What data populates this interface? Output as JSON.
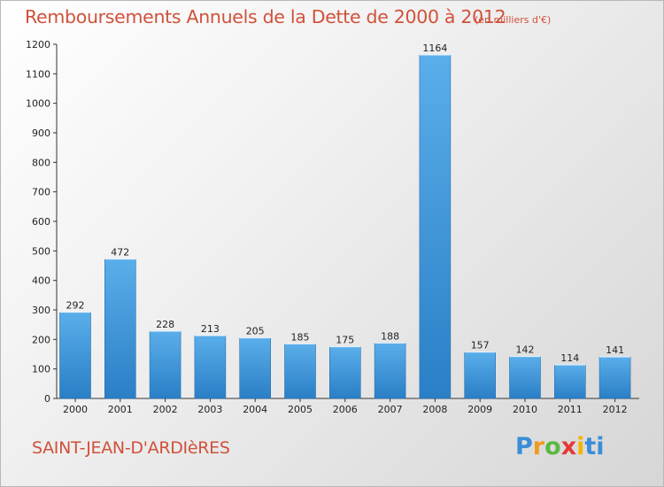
{
  "title": "Remboursements Annuels de la Dette de 2000 à 2012",
  "unit": "(en milliers d'€)",
  "place": "SAINT-JEAN-D'ARDIèRES",
  "logo": {
    "letters": [
      "P",
      "r",
      "o",
      "x",
      "i",
      "ti"
    ]
  },
  "colors": {
    "title": "#d0513a",
    "bar_top": "#5aaeea",
    "bar_bottom": "#2a7fc6"
  },
  "chart_data": {
    "type": "bar",
    "categories": [
      "2000",
      "2001",
      "2002",
      "2003",
      "2004",
      "2005",
      "2006",
      "2007",
      "2008",
      "2009",
      "2010",
      "2011",
      "2012"
    ],
    "values": [
      292,
      472,
      228,
      213,
      205,
      185,
      175,
      188,
      1164,
      157,
      142,
      114,
      141
    ],
    "value_labels": [
      "292",
      "472",
      "228",
      "213",
      "205",
      "185",
      "175",
      "188",
      "1164",
      "157",
      "142",
      "114",
      "141"
    ],
    "ylim": [
      0,
      1200
    ],
    "yticks": [
      "0",
      "100",
      "200",
      "300",
      "400",
      "500",
      "600",
      "700",
      "800",
      "900",
      "1000",
      "1100",
      "1200"
    ],
    "grid": false,
    "legend": "none"
  }
}
